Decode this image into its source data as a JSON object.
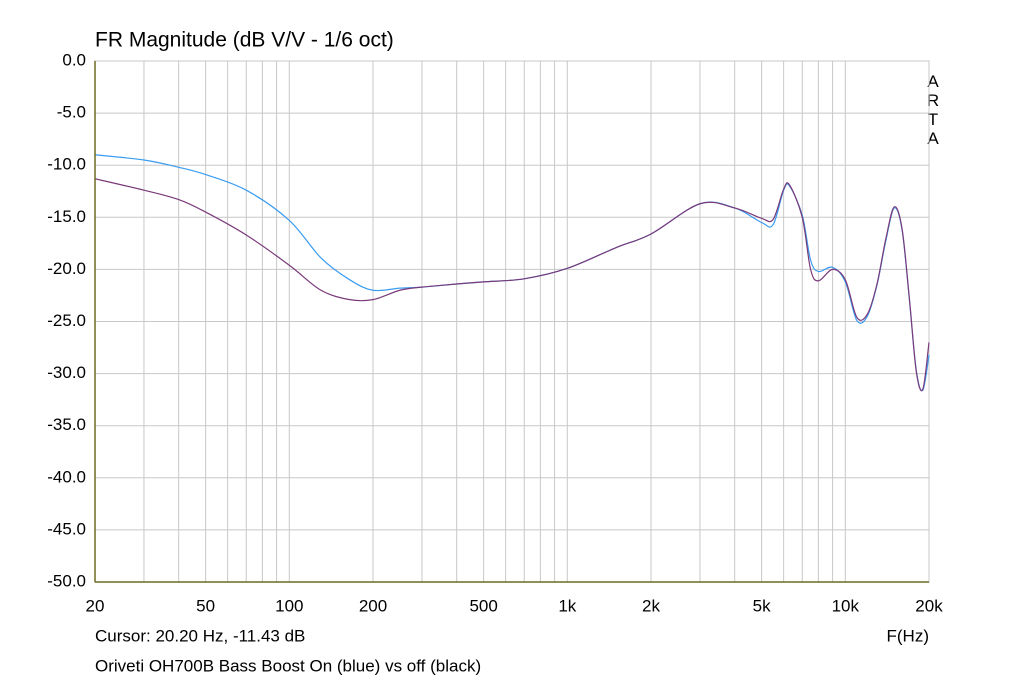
{
  "chart_data": {
    "type": "line",
    "title": "FR Magnitude (dB V/V - 1/6 oct)",
    "xlabel": "F(Hz)",
    "cursor": "Cursor: 20.20 Hz, -11.43 dB",
    "caption": "Oriveti OH700B Bass Boost On (blue) vs off (black)",
    "watermark": "ARTA",
    "xscale": "log",
    "grid": true,
    "xlim": [
      20,
      20000
    ],
    "ylim": [
      -50,
      0
    ],
    "xticks": [
      20,
      50,
      100,
      200,
      500,
      {
        "value": 1000,
        "label": "1k"
      },
      {
        "value": 2000,
        "label": "2k"
      },
      {
        "value": 5000,
        "label": "5k"
      },
      {
        "value": 10000,
        "label": "10k"
      },
      {
        "value": 20000,
        "label": "20k"
      }
    ],
    "xminorticks": [
      30,
      40,
      60,
      70,
      80,
      90,
      300,
      400,
      600,
      700,
      800,
      900,
      3000,
      4000,
      6000,
      7000,
      8000,
      9000
    ],
    "yticks": [
      {
        "value": 0,
        "label": "0.0"
      },
      {
        "value": -5,
        "label": "-5.0"
      },
      {
        "value": -10,
        "label": "-10.0"
      },
      {
        "value": -15,
        "label": "-15.0"
      },
      {
        "value": -20,
        "label": "-20.0"
      },
      {
        "value": -25,
        "label": "-25.0"
      },
      {
        "value": -30,
        "label": "-30.0"
      },
      {
        "value": -35,
        "label": "-35.0"
      },
      {
        "value": -40,
        "label": "-40.0"
      },
      {
        "value": -45,
        "label": "-45.0"
      },
      {
        "value": -50,
        "label": "-50.0"
      }
    ],
    "x": [
      20,
      30,
      40,
      50,
      70,
      100,
      130,
      165,
      200,
      250,
      300,
      400,
      500,
      700,
      1000,
      1500,
      2000,
      3000,
      4000,
      5000,
      5500,
      6000,
      6300,
      7000,
      7500,
      8000,
      9000,
      10000,
      11000,
      12000,
      13000,
      14000,
      15000,
      16000,
      17000,
      18000,
      19000,
      20000
    ],
    "series": [
      {
        "name": "On",
        "color": "#3a9cf0",
        "values": [
          -9.0,
          -9.5,
          -10.2,
          -10.9,
          -12.4,
          -15.3,
          -18.9,
          -21.0,
          -22.0,
          -21.8,
          -21.7,
          -21.4,
          -21.2,
          -20.9,
          -19.9,
          -17.9,
          -16.6,
          -13.7,
          -14.1,
          -15.5,
          -15.7,
          -12.4,
          -12.0,
          -14.8,
          -19.1,
          -20.2,
          -19.8,
          -21.2,
          -24.9,
          -24.5,
          -21.5,
          -17.2,
          -14.1,
          -16.2,
          -22.9,
          -29.7,
          -31.6,
          -28.2
        ]
      },
      {
        "name": "Off",
        "color": "#7a3a7a",
        "values": [
          -11.3,
          -12.4,
          -13.3,
          -14.5,
          -16.7,
          -19.6,
          -22.0,
          -22.9,
          -22.9,
          -22.0,
          -21.7,
          -21.4,
          -21.2,
          -20.9,
          -19.9,
          -17.9,
          -16.6,
          -13.7,
          -14.1,
          -15.1,
          -15.2,
          -12.3,
          -11.9,
          -15.0,
          -20.0,
          -21.1,
          -20.0,
          -21.0,
          -24.6,
          -24.3,
          -21.4,
          -17.0,
          -14.0,
          -16.1,
          -22.8,
          -29.8,
          -31.5,
          -27.0
        ]
      }
    ]
  }
}
